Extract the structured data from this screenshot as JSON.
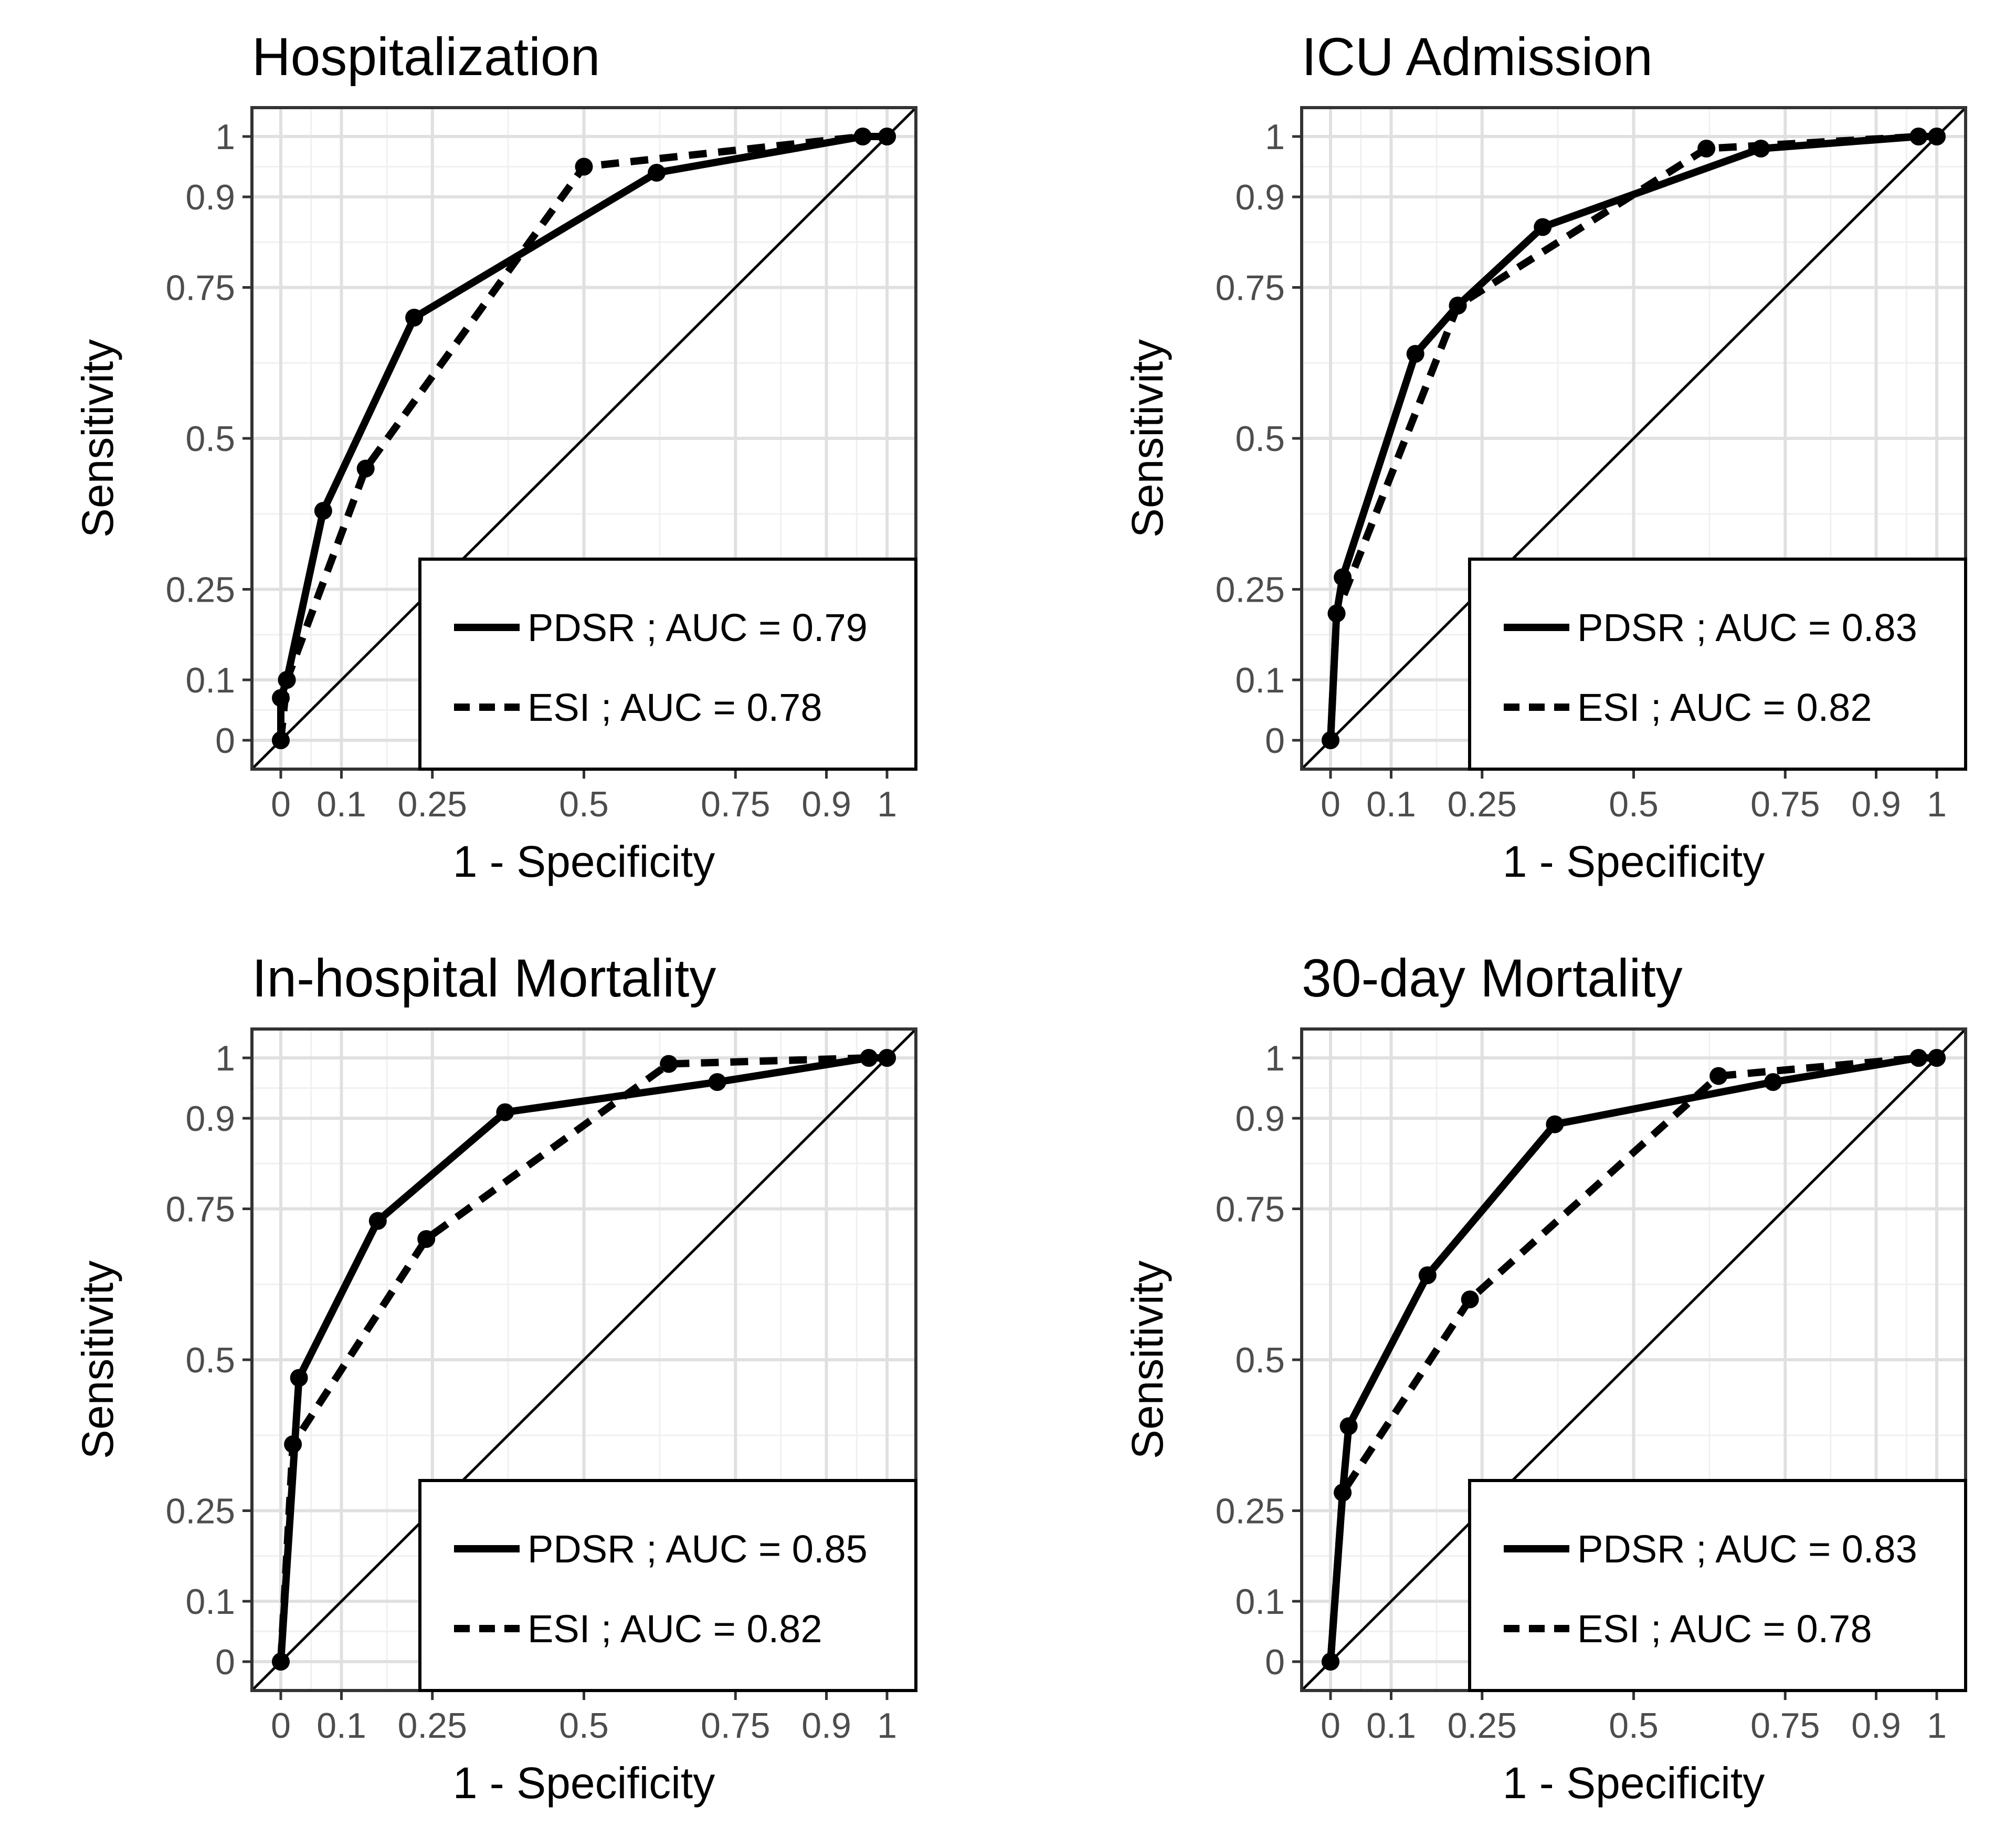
{
  "chart_data": [
    {
      "type": "line",
      "title": "Hospitalization",
      "xlabel": "1 - Specificity",
      "ylabel": "Sensitivity",
      "xlim": [
        0,
        1
      ],
      "ylim": [
        0,
        1
      ],
      "x_ticks": [
        "0",
        "0.1",
        "0.25",
        "0.5",
        "0.75",
        "0.9",
        "1"
      ],
      "y_ticks": [
        "0",
        "0.1",
        "0.25",
        "0.5",
        "0.75",
        "0.9",
        "1"
      ],
      "reference_line": "diagonal",
      "legend_position": "bottom-right",
      "series": [
        {
          "name": "PDSR",
          "auc": "0.79",
          "legend_label": "PDSR ; AUC = 0.79",
          "style": "solid",
          "points": [
            [
              0,
              0
            ],
            [
              0,
              0.07
            ],
            [
              0.01,
              0.1
            ],
            [
              0.07,
              0.38
            ],
            [
              0.22,
              0.7
            ],
            [
              0.62,
              0.94
            ],
            [
              0.96,
              1.0
            ],
            [
              1.0,
              1.0
            ]
          ]
        },
        {
          "name": "ESI",
          "auc": "0.78",
          "legend_label": "ESI ; AUC = 0.78",
          "style": "dashed",
          "points": [
            [
              0,
              0
            ],
            [
              0.01,
              0.1
            ],
            [
              0.14,
              0.45
            ],
            [
              0.5,
              0.95
            ],
            [
              0.96,
              1.0
            ],
            [
              1.0,
              1.0
            ]
          ]
        }
      ]
    },
    {
      "type": "line",
      "title": "ICU Admission",
      "xlabel": "1 - Specificity",
      "ylabel": "Sensitivity",
      "xlim": [
        0,
        1
      ],
      "ylim": [
        0,
        1
      ],
      "x_ticks": [
        "0",
        "0.1",
        "0.25",
        "0.5",
        "0.75",
        "0.9",
        "1"
      ],
      "y_ticks": [
        "0",
        "0.1",
        "0.25",
        "0.5",
        "0.75",
        "0.9",
        "1"
      ],
      "reference_line": "diagonal",
      "legend_position": "bottom-right",
      "series": [
        {
          "name": "PDSR",
          "auc": "0.83",
          "legend_label": "PDSR ; AUC = 0.83",
          "style": "solid",
          "points": [
            [
              0,
              0
            ],
            [
              0.01,
              0.21
            ],
            [
              0.02,
              0.27
            ],
            [
              0.14,
              0.64
            ],
            [
              0.21,
              0.72
            ],
            [
              0.35,
              0.85
            ],
            [
              0.71,
              0.98
            ],
            [
              0.97,
              1.0
            ],
            [
              1.0,
              1.0
            ]
          ]
        },
        {
          "name": "ESI",
          "auc": "0.82",
          "legend_label": "ESI ; AUC = 0.82",
          "style": "dashed",
          "points": [
            [
              0,
              0
            ],
            [
              0.01,
              0.21
            ],
            [
              0.21,
              0.72
            ],
            [
              0.62,
              0.98
            ],
            [
              0.97,
              1.0
            ],
            [
              1.0,
              1.0
            ]
          ]
        }
      ]
    },
    {
      "type": "line",
      "title": "In-hospital Mortality",
      "xlabel": "1 - Specificity",
      "ylabel": "Sensitivity",
      "xlim": [
        0,
        1
      ],
      "ylim": [
        0,
        1
      ],
      "x_ticks": [
        "0",
        "0.1",
        "0.25",
        "0.5",
        "0.75",
        "0.9",
        "1"
      ],
      "y_ticks": [
        "0",
        "0.1",
        "0.25",
        "0.5",
        "0.75",
        "0.9",
        "1"
      ],
      "reference_line": "diagonal",
      "legend_position": "bottom-right",
      "series": [
        {
          "name": "PDSR",
          "auc": "0.85",
          "legend_label": "PDSR ; AUC = 0.85",
          "style": "solid",
          "points": [
            [
              0,
              0
            ],
            [
              0.03,
              0.47
            ],
            [
              0.16,
              0.73
            ],
            [
              0.37,
              0.91
            ],
            [
              0.72,
              0.96
            ],
            [
              0.97,
              1.0
            ],
            [
              1.0,
              1.0
            ]
          ]
        },
        {
          "name": "ESI",
          "auc": "0.82",
          "legend_label": "ESI ; AUC = 0.82",
          "style": "dashed",
          "points": [
            [
              0,
              0
            ],
            [
              0.02,
              0.36
            ],
            [
              0.24,
              0.7
            ],
            [
              0.64,
              0.99
            ],
            [
              0.97,
              1.0
            ],
            [
              1.0,
              1.0
            ]
          ]
        }
      ]
    },
    {
      "type": "line",
      "title": "30-day Mortality",
      "xlabel": "1 - Specificity",
      "ylabel": "Sensitivity",
      "xlim": [
        0,
        1
      ],
      "ylim": [
        0,
        1
      ],
      "x_ticks": [
        "0",
        "0.1",
        "0.25",
        "0.5",
        "0.75",
        "0.9",
        "1"
      ],
      "y_ticks": [
        "0",
        "0.1",
        "0.25",
        "0.5",
        "0.75",
        "0.9",
        "1"
      ],
      "reference_line": "diagonal",
      "legend_position": "bottom-right",
      "series": [
        {
          "name": "PDSR",
          "auc": "0.83",
          "legend_label": "PDSR ; AUC = 0.83",
          "style": "solid",
          "points": [
            [
              0,
              0
            ],
            [
              0.02,
              0.28
            ],
            [
              0.03,
              0.39
            ],
            [
              0.16,
              0.64
            ],
            [
              0.37,
              0.89
            ],
            [
              0.73,
              0.96
            ],
            [
              0.97,
              1.0
            ],
            [
              1.0,
              1.0
            ]
          ]
        },
        {
          "name": "ESI",
          "auc": "0.78",
          "legend_label": "ESI ; AUC = 0.78",
          "style": "dashed",
          "points": [
            [
              0,
              0
            ],
            [
              0.02,
              0.28
            ],
            [
              0.23,
              0.6
            ],
            [
              0.64,
              0.97
            ],
            [
              0.97,
              1.0
            ],
            [
              1.0,
              1.0
            ]
          ]
        }
      ]
    }
  ]
}
